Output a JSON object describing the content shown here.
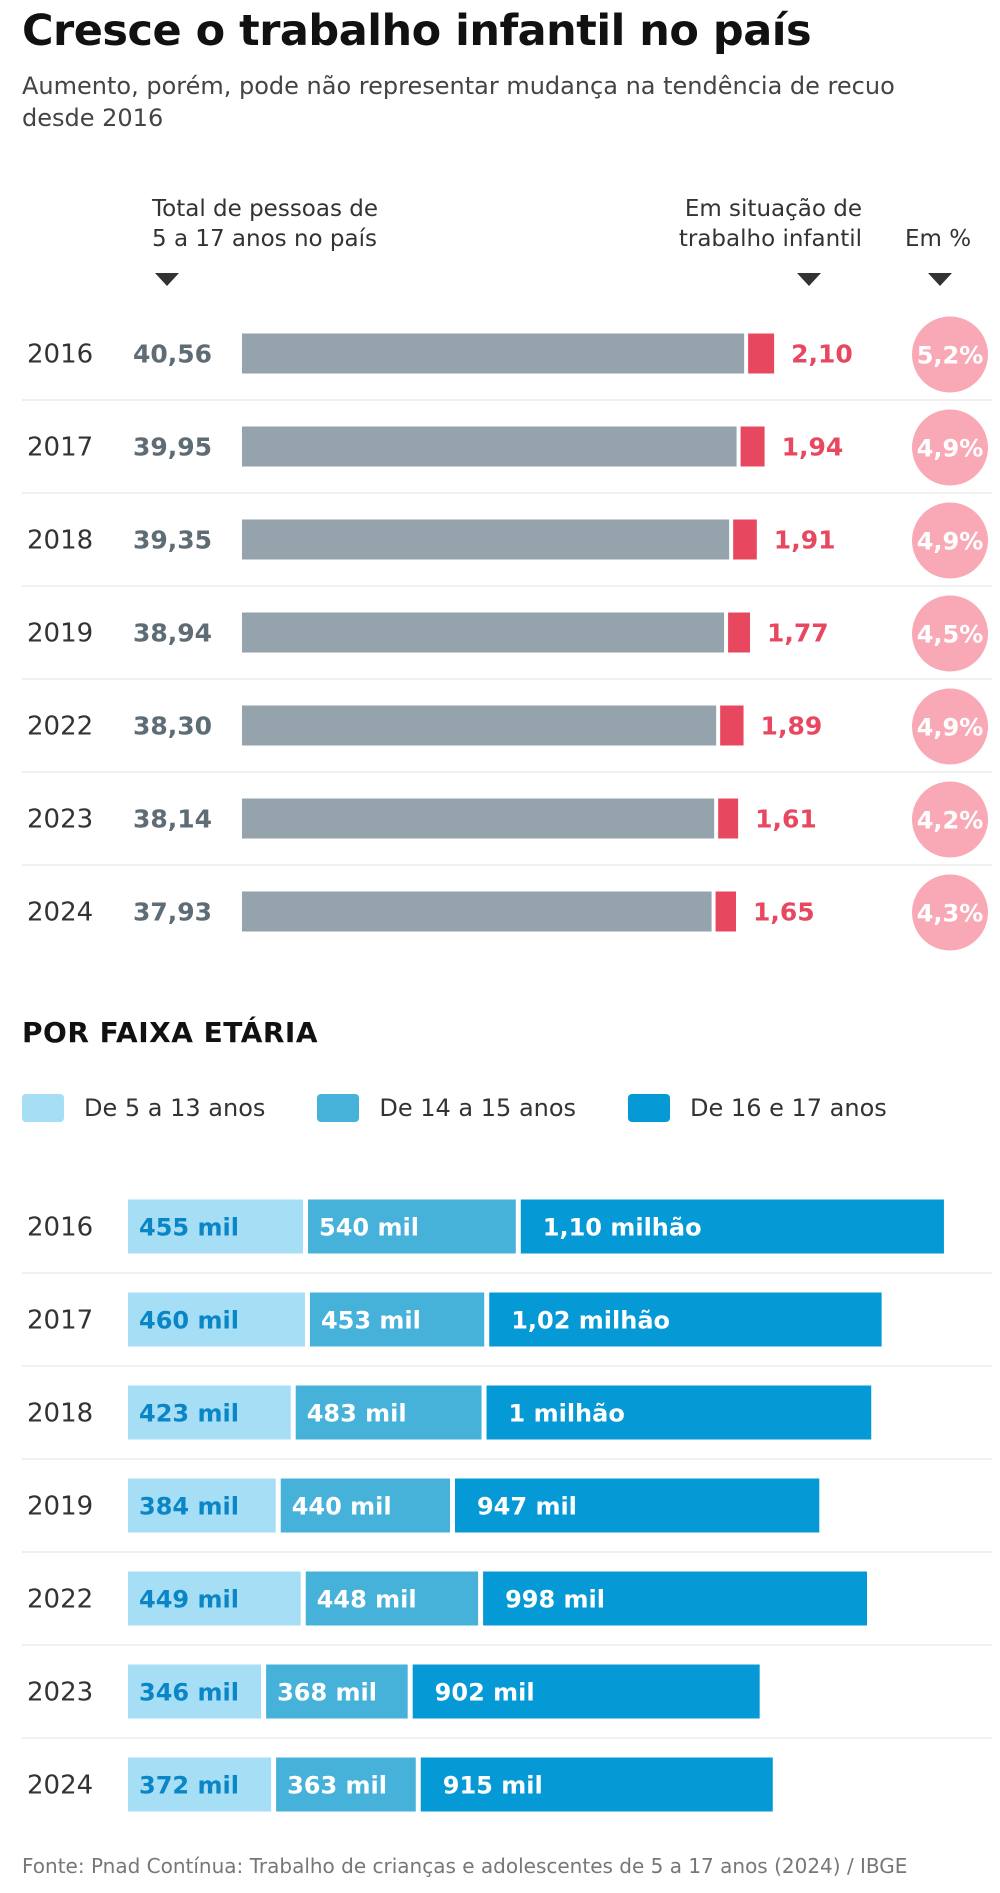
{
  "title": "Cresce o trabalho infantil no país",
  "subtitle": "Aumento, porém, pode não representar mudança na tendência de recuo desde 2016",
  "headers": {
    "total": [
      "Total de pessoas de",
      "5 a 17 anos no país"
    ],
    "work": [
      "Em situação de",
      "trabalho infantil"
    ],
    "pct": "Em %"
  },
  "colors": {
    "total_bar": "#95a3ad",
    "total_text": "#5e6c76",
    "work_bar": "#e8485f",
    "work_text": "#e8485f",
    "pct_circle": "#f9a9b6",
    "age_5_13": "#a6def6",
    "age_14_15": "#46b1d9",
    "age_16_17": "#0599d6",
    "age_5_13_text": "#0a86c6"
  },
  "section_title": "POR FAIXA ETÁRIA",
  "legend": [
    "De 5 a 13 anos",
    "De 14 a 15 anos",
    "De 16 e 17 anos"
  ],
  "source": "Fonte: Pnad Contínua: Trabalho de crianças e adolescentes de 5 a 17 anos (2024) / IBGE",
  "chart_data": [
    {
      "type": "bar",
      "categories": [
        "2016",
        "2017",
        "2018",
        "2019",
        "2022",
        "2023",
        "2024"
      ],
      "series": [
        {
          "name": "Total de pessoas de 5 a 17 anos no país",
          "values": [
            40.56,
            39.95,
            39.35,
            38.94,
            38.3,
            38.14,
            37.93
          ],
          "labels": [
            "40,56",
            "39,95",
            "39,35",
            "38,94",
            "38,30",
            "38,14",
            "37,93"
          ]
        },
        {
          "name": "Em situação de trabalho infantil",
          "values": [
            2.1,
            1.94,
            1.91,
            1.77,
            1.89,
            1.61,
            1.65
          ],
          "labels": [
            "2,10",
            "1,94",
            "1,91",
            "1,77",
            "1,89",
            "1,61",
            "1,65"
          ]
        },
        {
          "name": "Em %",
          "values": [
            5.2,
            4.9,
            4.9,
            4.5,
            4.9,
            4.2,
            4.3
          ],
          "labels": [
            "5,2%",
            "4,9%",
            "4,9%",
            "4,5%",
            "4,9%",
            "4,2%",
            "4,3%"
          ]
        }
      ]
    },
    {
      "type": "bar",
      "stacked": true,
      "categories": [
        "2016",
        "2017",
        "2018",
        "2019",
        "2022",
        "2023",
        "2024"
      ],
      "series": [
        {
          "name": "De 5 a 13 anos",
          "values": [
            455,
            460,
            423,
            384,
            449,
            346,
            372
          ],
          "labels": [
            "455 mil",
            "460 mil",
            "423 mil",
            "384 mil",
            "449 mil",
            "346 mil",
            "372 mil"
          ]
        },
        {
          "name": "De 14 a 15 anos",
          "values": [
            540,
            453,
            483,
            440,
            448,
            368,
            363
          ],
          "labels": [
            "540 mil",
            "453 mil",
            "483 mil",
            "440 mil",
            "448 mil",
            "368 mil",
            "363 mil"
          ]
        },
        {
          "name": "De 16 e 17 anos",
          "values": [
            1100,
            1020,
            1000,
            947,
            998,
            902,
            915
          ],
          "labels": [
            "1,10 milhão",
            "1,02 milhão",
            "1 milhão",
            "947 mil",
            "998 mil",
            "902 mil",
            "915 mil"
          ]
        }
      ]
    }
  ]
}
